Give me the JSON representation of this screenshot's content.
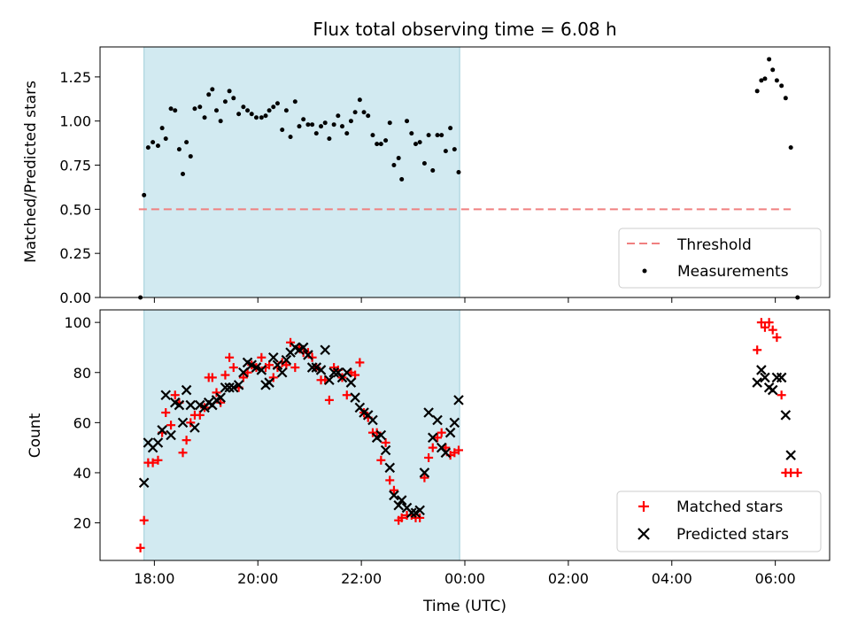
{
  "figure": {
    "title": "Flux total observing time = 6.08 h"
  },
  "chart_data": [
    {
      "type": "scatter",
      "ylabel": "Matched/Predicted stars",
      "ylim": [
        0,
        1.42
      ],
      "xlim": [
        16.95,
        31.05
      ],
      "yticks": [
        0.0,
        0.25,
        0.5,
        0.75,
        1.0,
        1.25
      ],
      "ytick_labels": [
        "0.00",
        "0.25",
        "0.50",
        "0.75",
        "1.00",
        "1.25"
      ],
      "observing_window": [
        17.8,
        23.9
      ],
      "threshold": {
        "value": 0.5,
        "x_range": [
          17.7,
          30.3
        ],
        "color": "#f08080"
      },
      "legend": {
        "position": "lower right",
        "entries": [
          "Threshold",
          "Measurements"
        ]
      },
      "series": [
        {
          "name": "Measurements",
          "color": "#000000",
          "x": [
            17.73,
            17.8,
            17.88,
            17.97,
            18.07,
            18.15,
            18.22,
            18.32,
            18.4,
            18.48,
            18.55,
            18.62,
            18.7,
            18.78,
            18.88,
            18.97,
            19.05,
            19.12,
            19.2,
            19.28,
            19.37,
            19.45,
            19.53,
            19.63,
            19.72,
            19.8,
            19.88,
            19.97,
            20.07,
            20.15,
            20.22,
            20.3,
            20.38,
            20.47,
            20.55,
            20.63,
            20.72,
            20.8,
            20.88,
            20.97,
            21.05,
            21.13,
            21.22,
            21.3,
            21.38,
            21.47,
            21.55,
            21.63,
            21.72,
            21.8,
            21.88,
            21.97,
            22.05,
            22.13,
            22.22,
            22.3,
            22.38,
            22.47,
            22.55,
            22.63,
            22.72,
            22.78,
            22.88,
            22.97,
            23.05,
            23.13,
            23.22,
            23.3,
            23.38,
            23.47,
            23.55,
            23.63,
            23.72,
            23.8,
            23.88,
            29.65,
            29.73,
            29.8,
            29.88,
            29.95,
            30.03,
            30.12,
            30.2,
            30.3,
            30.43
          ],
          "y": [
            0.0,
            0.58,
            0.85,
            0.88,
            0.86,
            0.96,
            0.9,
            1.07,
            1.06,
            0.84,
            0.7,
            0.88,
            0.8,
            1.07,
            1.08,
            1.02,
            1.15,
            1.18,
            1.06,
            1.0,
            1.11,
            1.17,
            1.13,
            1.04,
            1.08,
            1.06,
            1.04,
            1.02,
            1.02,
            1.03,
            1.06,
            1.08,
            1.1,
            0.95,
            1.06,
            0.91,
            1.11,
            0.97,
            1.01,
            0.98,
            0.98,
            0.93,
            0.97,
            0.99,
            0.9,
            0.98,
            1.03,
            0.97,
            0.93,
            1.0,
            1.05,
            1.12,
            1.05,
            1.03,
            0.92,
            0.87,
            0.87,
            0.89,
            0.99,
            0.75,
            0.79,
            0.67,
            1.0,
            0.93,
            0.87,
            0.88,
            0.76,
            0.92,
            0.72,
            0.92,
            0.92,
            0.83,
            0.96,
            0.84,
            0.71,
            1.17,
            1.23,
            1.24,
            1.35,
            1.29,
            1.23,
            1.2,
            1.13,
            0.85,
            0.0
          ]
        }
      ]
    },
    {
      "type": "scatter",
      "xlabel": "Time (UTC)",
      "ylabel": "Count",
      "ylim": [
        5,
        105
      ],
      "xlim": [
        16.95,
        31.05
      ],
      "yticks": [
        20,
        40,
        60,
        80,
        100
      ],
      "ytick_labels": [
        "20",
        "40",
        "60",
        "80",
        "100"
      ],
      "xticks": [
        18,
        20,
        22,
        24,
        26,
        28,
        30
      ],
      "xtick_labels": [
        "18:00",
        "20:00",
        "22:00",
        "00:00",
        "02:00",
        "04:00",
        "06:00"
      ],
      "observing_window": [
        17.8,
        23.9
      ],
      "legend": {
        "position": "lower right",
        "entries": [
          "Matched stars",
          "Predicted stars"
        ]
      },
      "series": [
        {
          "name": "Matched stars",
          "marker": "plus",
          "color": "#ff0000",
          "x": [
            17.73,
            17.8,
            17.88,
            17.97,
            18.07,
            18.15,
            18.22,
            18.32,
            18.4,
            18.48,
            18.55,
            18.62,
            18.7,
            18.78,
            18.88,
            18.97,
            19.05,
            19.12,
            19.2,
            19.28,
            19.37,
            19.45,
            19.53,
            19.63,
            19.72,
            19.8,
            19.88,
            19.97,
            20.07,
            20.15,
            20.22,
            20.3,
            20.38,
            20.47,
            20.55,
            20.63,
            20.72,
            20.8,
            20.88,
            20.97,
            21.05,
            21.13,
            21.22,
            21.3,
            21.38,
            21.47,
            21.55,
            21.63,
            21.72,
            21.8,
            21.88,
            21.97,
            22.05,
            22.13,
            22.22,
            22.3,
            22.38,
            22.47,
            22.55,
            22.63,
            22.72,
            22.78,
            22.88,
            22.97,
            23.05,
            23.13,
            23.22,
            23.3,
            23.38,
            23.47,
            23.55,
            23.63,
            23.72,
            23.8,
            23.88,
            29.65,
            29.73,
            29.8,
            29.88,
            29.95,
            30.03,
            30.12,
            30.2,
            30.3,
            30.43
          ],
          "y": [
            10,
            21,
            44,
            44,
            45,
            56,
            64,
            59,
            71,
            68,
            48,
            53,
            60,
            63,
            63,
            66,
            78,
            78,
            72,
            68,
            79,
            86,
            82,
            74,
            78,
            80,
            83,
            82,
            86,
            82,
            83,
            78,
            82,
            84,
            83,
            92,
            82,
            90,
            88,
            88,
            86,
            82,
            77,
            77,
            69,
            82,
            81,
            78,
            71,
            80,
            79,
            84,
            64,
            62,
            56,
            56,
            45,
            52,
            37,
            33,
            21,
            22,
            23,
            23,
            22,
            22,
            38,
            46,
            50,
            54,
            56,
            50,
            47,
            48,
            49,
            89,
            100,
            98,
            100,
            97,
            94,
            71,
            40,
            40,
            40
          ]
        },
        {
          "name": "Predicted stars",
          "marker": "x",
          "color": "#000000",
          "x": [
            17.8,
            17.88,
            17.97,
            18.07,
            18.15,
            18.22,
            18.32,
            18.4,
            18.48,
            18.55,
            18.62,
            18.7,
            18.78,
            18.88,
            18.97,
            19.05,
            19.12,
            19.2,
            19.28,
            19.37,
            19.45,
            19.53,
            19.63,
            19.72,
            19.8,
            19.88,
            19.97,
            20.07,
            20.15,
            20.22,
            20.3,
            20.38,
            20.47,
            20.55,
            20.63,
            20.72,
            20.8,
            20.88,
            20.97,
            21.05,
            21.13,
            21.22,
            21.3,
            21.38,
            21.47,
            21.55,
            21.63,
            21.72,
            21.8,
            21.88,
            21.97,
            22.05,
            22.13,
            22.22,
            22.3,
            22.38,
            22.47,
            22.55,
            22.63,
            22.72,
            22.78,
            22.88,
            22.97,
            23.05,
            23.13,
            23.22,
            23.3,
            23.38,
            23.47,
            23.55,
            23.63,
            23.72,
            23.8,
            23.88,
            29.65,
            29.73,
            29.8,
            29.88,
            29.95,
            30.03,
            30.12,
            30.2,
            30.3
          ],
          "y": [
            36,
            52,
            50,
            52,
            57,
            71,
            55,
            68,
            67,
            60,
            73,
            67,
            58,
            67,
            66,
            68,
            67,
            69,
            70,
            74,
            74,
            74,
            75,
            80,
            84,
            83,
            82,
            81,
            75,
            76,
            86,
            83,
            80,
            85,
            88,
            90,
            89,
            90,
            87,
            82,
            82,
            81,
            89,
            77,
            80,
            80,
            78,
            80,
            76,
            70,
            66,
            64,
            63,
            61,
            54,
            55,
            49,
            42,
            31,
            27,
            29,
            26,
            24,
            24,
            25,
            40,
            64,
            54,
            61,
            50,
            48,
            56,
            60,
            69,
            76,
            81,
            78,
            74,
            73,
            78,
            78,
            63,
            47
          ]
        }
      ]
    }
  ]
}
